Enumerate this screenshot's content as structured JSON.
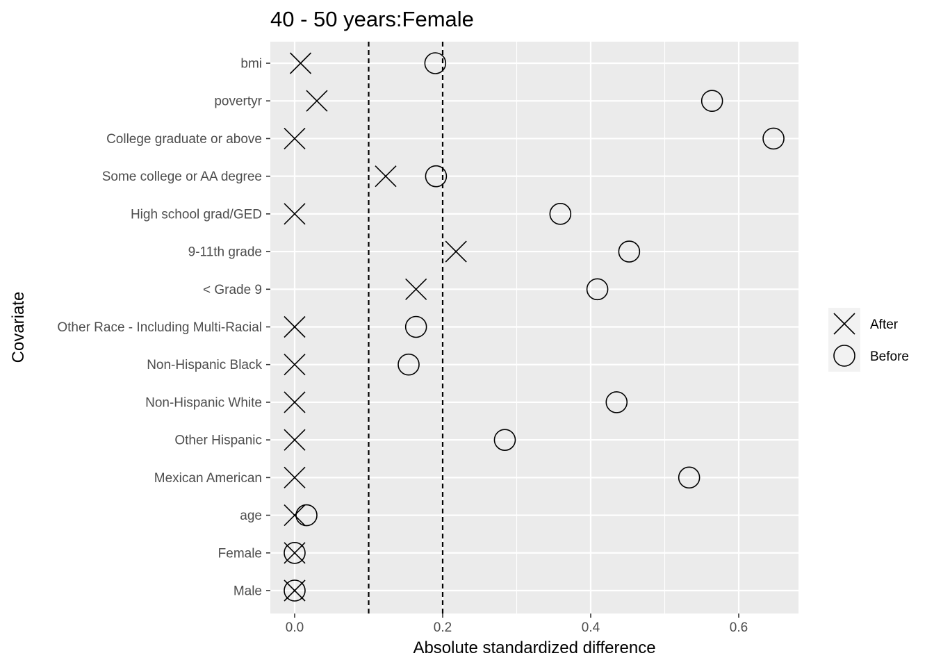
{
  "chart_data": {
    "type": "scatter",
    "title": "40 - 50 years:Female",
    "xlabel": "Absolute standardized difference",
    "ylabel": "Covariate",
    "xlim": [
      -0.033,
      0.68
    ],
    "x_ticks": [
      0.0,
      0.2,
      0.4,
      0.6
    ],
    "x_tick_labels": [
      "0.0",
      "0.2",
      "0.4",
      "0.6"
    ],
    "reference_lines": [
      0.1,
      0.2
    ],
    "grid": true,
    "legend_position": "right",
    "categories": [
      "bmi",
      "povertyr",
      "College graduate or above",
      "Some college or AA degree",
      "High school grad/GED",
      "9-11th grade",
      "< Grade 9",
      "Other Race - Including Multi-Racial",
      "Non-Hispanic Black",
      "Non-Hispanic White",
      "Other Hispanic",
      "Mexican American",
      "age",
      "Female",
      "Male"
    ],
    "series": [
      {
        "name": "After",
        "marker": "cross",
        "values": [
          0.008,
          0.03,
          0.0,
          0.123,
          0.0,
          0.218,
          0.164,
          0.0,
          0.0,
          0.0,
          0.0,
          0.0,
          0.0,
          0.0,
          0.0
        ]
      },
      {
        "name": "Before",
        "marker": "circle",
        "values": [
          0.19,
          0.564,
          0.647,
          0.191,
          0.359,
          0.452,
          0.409,
          0.164,
          0.154,
          0.435,
          0.284,
          0.533,
          0.016,
          0.0,
          0.0
        ]
      }
    ]
  }
}
